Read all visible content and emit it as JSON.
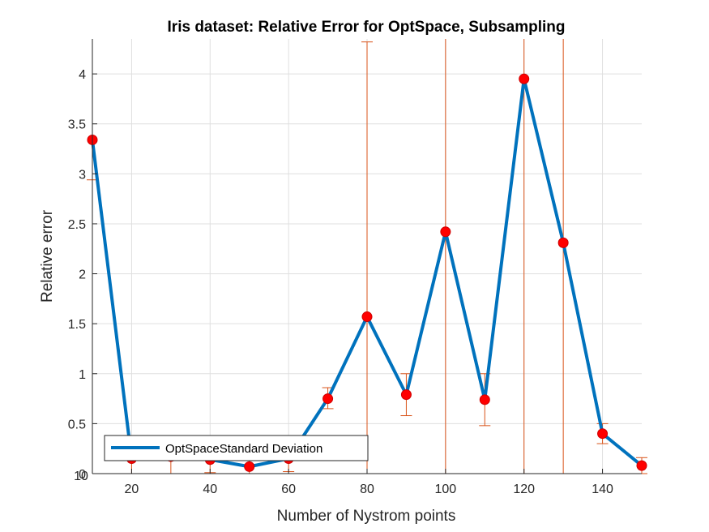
{
  "chart_data": {
    "type": "line",
    "title": "Iris dataset: Relative Error for OptSpace, Subsampling",
    "xlabel": "Number of Nystrom points",
    "ylabel": "Relative error",
    "xlim": [
      10,
      150
    ],
    "ylim": [
      0,
      4.35
    ],
    "xticks": [
      20,
      40,
      60,
      80,
      100,
      120,
      140
    ],
    "xtick_labels": [
      "20",
      "40",
      "60",
      "80",
      "100",
      "120",
      "140"
    ],
    "yticks": [
      0,
      0.5,
      1,
      1.5,
      2,
      2.5,
      3,
      3.5,
      4
    ],
    "ytick_labels": [
      "0",
      "0.5",
      "1",
      "1.5",
      "2",
      "2.5",
      "3",
      "3.5",
      "4"
    ],
    "grid": true,
    "legend_position": "bottom-left",
    "legend_label": "OptSpaceStandard Deviation",
    "x": [
      10,
      20,
      30,
      40,
      50,
      60,
      70,
      80,
      90,
      100,
      110,
      120,
      130,
      140,
      150
    ],
    "series": [
      {
        "name": "OptSpaceStandard Deviation",
        "values": [
          3.34,
          0.15,
          0.17,
          0.14,
          0.07,
          0.15,
          0.75,
          1.57,
          0.79,
          2.42,
          0.74,
          3.95,
          2.31,
          0.4,
          0.08
        ],
        "error_low": [
          0.4,
          0.15,
          0.17,
          0.13,
          0.07,
          0.13,
          0.1,
          1.57,
          0.21,
          2.42,
          0.26,
          3.95,
          2.31,
          0.1,
          0.08
        ],
        "error_high": [
          1.1,
          0.15,
          0.17,
          0.13,
          0.07,
          0.13,
          0.11,
          2.75,
          0.21,
          2.0,
          0.26,
          1.0,
          2.2,
          0.1,
          0.08
        ]
      }
    ],
    "colors": {
      "line": "#0072BD",
      "marker": "#FF0000",
      "errorbar": "#D95319",
      "grid": "#dfdfdf",
      "axis": "#262626"
    }
  }
}
